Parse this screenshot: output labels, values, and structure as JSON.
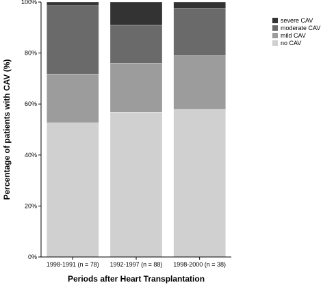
{
  "chart_data": {
    "type": "bar",
    "stacked": true,
    "categories": [
      "1998-1991 (n = 78)",
      "1992-1997 (n = 88)",
      "1998-2000 (n = 38)"
    ],
    "series": [
      {
        "name": "no CAV",
        "values": [
          52.6,
          56.8,
          57.9
        ],
        "color": "#d0d0d0"
      },
      {
        "name": "mild CAV",
        "values": [
          19.2,
          19.3,
          21.1
        ],
        "color": "#9c9c9c"
      },
      {
        "name": "moderate CAV",
        "values": [
          26.9,
          14.8,
          18.4
        ],
        "color": "#6a6a6a"
      },
      {
        "name": "severe CAV",
        "values": [
          1.3,
          9.1,
          2.6
        ],
        "color": "#333333"
      }
    ],
    "legend_order": [
      "severe CAV",
      "moderate CAV",
      "mild CAV",
      "no CAV"
    ],
    "xlabel": "Periods after Heart Transplantation",
    "ylabel": "Percentage of patients with CAV (%)",
    "ylim": [
      0,
      100
    ],
    "yticks": [
      0,
      20,
      40,
      60,
      80,
      100
    ],
    "ytick_labels": [
      "0%",
      "20%",
      "40%",
      "60%",
      "80%",
      "100%"
    ],
    "grid": false,
    "legend_position": "top-right"
  }
}
